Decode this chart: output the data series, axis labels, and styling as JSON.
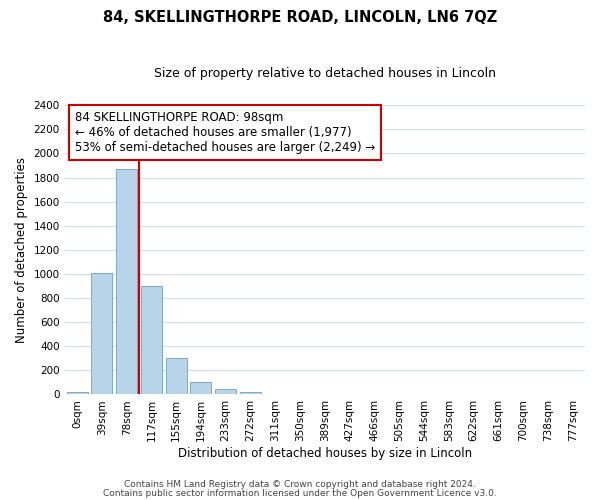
{
  "title": "84, SKELLINGTHORPE ROAD, LINCOLN, LN6 7QZ",
  "subtitle": "Size of property relative to detached houses in Lincoln",
  "xlabel": "Distribution of detached houses by size in Lincoln",
  "ylabel": "Number of detached properties",
  "bar_labels": [
    "0sqm",
    "39sqm",
    "78sqm",
    "117sqm",
    "155sqm",
    "194sqm",
    "233sqm",
    "272sqm",
    "311sqm",
    "350sqm",
    "389sqm",
    "427sqm",
    "466sqm",
    "505sqm",
    "544sqm",
    "583sqm",
    "622sqm",
    "661sqm",
    "700sqm",
    "738sqm",
    "777sqm"
  ],
  "bar_values": [
    20,
    1010,
    1870,
    900,
    300,
    100,
    45,
    20,
    0,
    0,
    0,
    0,
    0,
    0,
    0,
    0,
    0,
    0,
    0,
    0,
    0
  ],
  "bar_color": "#b8d4e8",
  "bar_edge_color": "#7aaac8",
  "vline_color": "#cc0000",
  "annotation_lines": [
    "84 SKELLINGTHORPE ROAD: 98sqm",
    "← 46% of detached houses are smaller (1,977)",
    "53% of semi-detached houses are larger (2,249) →"
  ],
  "annotation_box_color": "#ffffff",
  "annotation_box_edge": "#cc0000",
  "ylim": [
    0,
    2400
  ],
  "yticks": [
    0,
    200,
    400,
    600,
    800,
    1000,
    1200,
    1400,
    1600,
    1800,
    2000,
    2200,
    2400
  ],
  "footer_lines": [
    "Contains HM Land Registry data © Crown copyright and database right 2024.",
    "Contains public sector information licensed under the Open Government Licence v3.0."
  ],
  "background_color": "#ffffff",
  "grid_color": "#d0dde8",
  "title_fontsize": 10.5,
  "subtitle_fontsize": 9,
  "axis_label_fontsize": 8.5,
  "tick_fontsize": 7.5,
  "annotation_fontsize": 8.5,
  "footer_fontsize": 6.5
}
